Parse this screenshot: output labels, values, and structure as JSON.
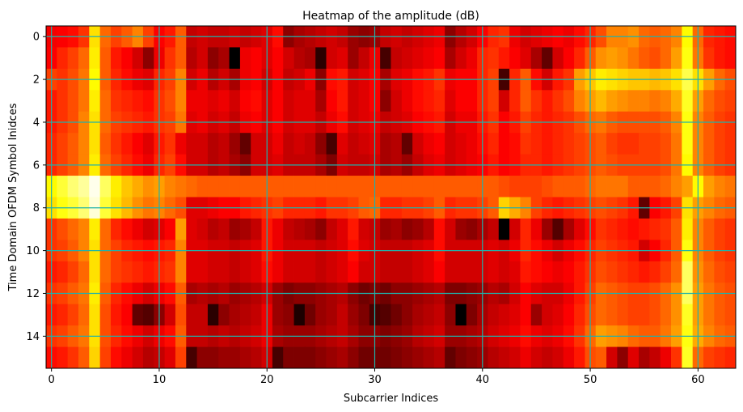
{
  "chart_data": {
    "type": "heatmap",
    "title": "Heatmap of the amplitude (dB)",
    "xlabel": "Subcarrier Indices",
    "ylabel": "Time Domain OFDM Symbol Inidces",
    "colormap": "hot",
    "grid": true,
    "grid_color": "#20b2aa",
    "xlim": [
      -0.5,
      63.5
    ],
    "ylim": [
      15.5,
      -0.5
    ],
    "xticks": [
      0,
      10,
      20,
      30,
      40,
      50,
      60
    ],
    "yticks": [
      0,
      2,
      4,
      6,
      8,
      10,
      12,
      14
    ],
    "n_cols": 64,
    "n_rows": 16,
    "value_scale": "relative amplitude level 0 (dark) to 1 (bright)",
    "matrix": [
      [
        0.35,
        0.36,
        0.38,
        0.44,
        0.7,
        0.52,
        0.46,
        0.5,
        0.56,
        0.46,
        0.36,
        0.4,
        0.5,
        0.28,
        0.3,
        0.28,
        0.28,
        0.3,
        0.28,
        0.3,
        0.32,
        0.38,
        0.2,
        0.24,
        0.26,
        0.28,
        0.3,
        0.28,
        0.22,
        0.2,
        0.22,
        0.28,
        0.3,
        0.28,
        0.3,
        0.32,
        0.34,
        0.2,
        0.26,
        0.3,
        0.36,
        0.42,
        0.44,
        0.34,
        0.3,
        0.32,
        0.34,
        0.36,
        0.34,
        0.38,
        0.42,
        0.48,
        0.56,
        0.56,
        0.58,
        0.52,
        0.5,
        0.52,
        0.56,
        0.74,
        0.52,
        0.42,
        0.4,
        0.38
      ],
      [
        0.36,
        0.42,
        0.46,
        0.52,
        0.72,
        0.5,
        0.4,
        0.36,
        0.3,
        0.2,
        0.34,
        0.44,
        0.5,
        0.26,
        0.3,
        0.2,
        0.24,
        0.0,
        0.34,
        0.36,
        0.32,
        0.36,
        0.3,
        0.26,
        0.24,
        0.06,
        0.3,
        0.32,
        0.22,
        0.28,
        0.34,
        0.1,
        0.28,
        0.3,
        0.32,
        0.34,
        0.36,
        0.24,
        0.3,
        0.34,
        0.42,
        0.44,
        0.4,
        0.36,
        0.32,
        0.24,
        0.14,
        0.3,
        0.36,
        0.42,
        0.5,
        0.58,
        0.6,
        0.58,
        0.54,
        0.5,
        0.48,
        0.52,
        0.6,
        0.76,
        0.54,
        0.44,
        0.4,
        0.38
      ],
      [
        0.46,
        0.44,
        0.48,
        0.54,
        0.74,
        0.5,
        0.42,
        0.38,
        0.34,
        0.32,
        0.42,
        0.46,
        0.56,
        0.3,
        0.34,
        0.26,
        0.3,
        0.24,
        0.34,
        0.36,
        0.3,
        0.36,
        0.28,
        0.3,
        0.34,
        0.2,
        0.38,
        0.4,
        0.3,
        0.32,
        0.36,
        0.24,
        0.32,
        0.34,
        0.38,
        0.4,
        0.44,
        0.34,
        0.36,
        0.36,
        0.42,
        0.46,
        0.1,
        0.42,
        0.5,
        0.38,
        0.3,
        0.4,
        0.44,
        0.6,
        0.66,
        0.72,
        0.7,
        0.68,
        0.66,
        0.66,
        0.64,
        0.66,
        0.7,
        0.82,
        0.7,
        0.6,
        0.52,
        0.48
      ],
      [
        0.4,
        0.44,
        0.48,
        0.54,
        0.72,
        0.52,
        0.44,
        0.42,
        0.4,
        0.38,
        0.44,
        0.48,
        0.56,
        0.34,
        0.34,
        0.32,
        0.34,
        0.3,
        0.36,
        0.38,
        0.32,
        0.36,
        0.3,
        0.32,
        0.32,
        0.24,
        0.36,
        0.4,
        0.3,
        0.32,
        0.36,
        0.2,
        0.3,
        0.34,
        0.38,
        0.4,
        0.42,
        0.32,
        0.36,
        0.36,
        0.42,
        0.46,
        0.3,
        0.42,
        0.5,
        0.44,
        0.4,
        0.44,
        0.48,
        0.56,
        0.6,
        0.64,
        0.6,
        0.58,
        0.56,
        0.56,
        0.54,
        0.56,
        0.62,
        0.78,
        0.6,
        0.52,
        0.48,
        0.46
      ],
      [
        0.4,
        0.44,
        0.48,
        0.56,
        0.7,
        0.52,
        0.46,
        0.44,
        0.42,
        0.4,
        0.44,
        0.46,
        0.54,
        0.32,
        0.34,
        0.3,
        0.32,
        0.28,
        0.34,
        0.36,
        0.32,
        0.36,
        0.3,
        0.32,
        0.32,
        0.28,
        0.34,
        0.38,
        0.3,
        0.32,
        0.34,
        0.28,
        0.3,
        0.32,
        0.36,
        0.38,
        0.4,
        0.3,
        0.34,
        0.34,
        0.4,
        0.44,
        0.36,
        0.4,
        0.46,
        0.42,
        0.4,
        0.42,
        0.44,
        0.48,
        0.52,
        0.54,
        0.5,
        0.48,
        0.48,
        0.48,
        0.48,
        0.5,
        0.56,
        0.76,
        0.56,
        0.5,
        0.46,
        0.44
      ],
      [
        0.42,
        0.46,
        0.5,
        0.56,
        0.7,
        0.5,
        0.44,
        0.4,
        0.36,
        0.32,
        0.4,
        0.44,
        0.34,
        0.3,
        0.3,
        0.26,
        0.28,
        0.22,
        0.14,
        0.3,
        0.3,
        0.34,
        0.28,
        0.3,
        0.28,
        0.2,
        0.1,
        0.32,
        0.28,
        0.3,
        0.32,
        0.24,
        0.26,
        0.14,
        0.3,
        0.34,
        0.36,
        0.3,
        0.32,
        0.34,
        0.38,
        0.42,
        0.36,
        0.38,
        0.44,
        0.42,
        0.4,
        0.42,
        0.44,
        0.46,
        0.48,
        0.5,
        0.46,
        0.44,
        0.44,
        0.46,
        0.46,
        0.48,
        0.54,
        0.76,
        0.56,
        0.5,
        0.46,
        0.44
      ],
      [
        0.42,
        0.46,
        0.5,
        0.56,
        0.72,
        0.52,
        0.46,
        0.42,
        0.38,
        0.34,
        0.42,
        0.46,
        0.38,
        0.3,
        0.3,
        0.26,
        0.28,
        0.24,
        0.2,
        0.3,
        0.3,
        0.32,
        0.28,
        0.28,
        0.28,
        0.24,
        0.18,
        0.3,
        0.28,
        0.28,
        0.3,
        0.24,
        0.26,
        0.22,
        0.28,
        0.32,
        0.34,
        0.3,
        0.32,
        0.34,
        0.36,
        0.4,
        0.36,
        0.38,
        0.42,
        0.42,
        0.4,
        0.42,
        0.44,
        0.46,
        0.48,
        0.5,
        0.48,
        0.46,
        0.46,
        0.46,
        0.46,
        0.48,
        0.54,
        0.74,
        0.56,
        0.5,
        0.46,
        0.44
      ],
      [
        0.74,
        0.8,
        0.86,
        0.9,
        0.98,
        0.84,
        0.72,
        0.66,
        0.62,
        0.58,
        0.6,
        0.56,
        0.54,
        0.52,
        0.5,
        0.5,
        0.5,
        0.5,
        0.5,
        0.5,
        0.5,
        0.5,
        0.5,
        0.5,
        0.5,
        0.5,
        0.5,
        0.5,
        0.5,
        0.5,
        0.5,
        0.5,
        0.5,
        0.5,
        0.5,
        0.5,
        0.5,
        0.5,
        0.5,
        0.5,
        0.5,
        0.5,
        0.48,
        0.46,
        0.46,
        0.46,
        0.48,
        0.5,
        0.5,
        0.5,
        0.52,
        0.54,
        0.54,
        0.54,
        0.5,
        0.5,
        0.5,
        0.52,
        0.56,
        0.6,
        0.74,
        0.6,
        0.56,
        0.54
      ],
      [
        0.7,
        0.76,
        0.8,
        0.86,
        0.96,
        0.8,
        0.7,
        0.64,
        0.58,
        0.54,
        0.56,
        0.52,
        0.48,
        0.32,
        0.32,
        0.34,
        0.36,
        0.36,
        0.4,
        0.42,
        0.44,
        0.46,
        0.42,
        0.42,
        0.42,
        0.4,
        0.44,
        0.44,
        0.46,
        0.5,
        0.52,
        0.42,
        0.42,
        0.44,
        0.44,
        0.46,
        0.5,
        0.42,
        0.44,
        0.44,
        0.46,
        0.5,
        0.68,
        0.62,
        0.56,
        0.46,
        0.42,
        0.4,
        0.42,
        0.44,
        0.46,
        0.48,
        0.46,
        0.44,
        0.4,
        0.14,
        0.36,
        0.4,
        0.46,
        0.7,
        0.6,
        0.56,
        0.52,
        0.5
      ],
      [
        0.44,
        0.48,
        0.52,
        0.56,
        0.72,
        0.52,
        0.42,
        0.38,
        0.34,
        0.3,
        0.32,
        0.36,
        0.6,
        0.32,
        0.3,
        0.26,
        0.28,
        0.22,
        0.24,
        0.28,
        0.4,
        0.34,
        0.28,
        0.26,
        0.24,
        0.2,
        0.28,
        0.32,
        0.4,
        0.3,
        0.28,
        0.22,
        0.24,
        0.2,
        0.22,
        0.26,
        0.38,
        0.3,
        0.22,
        0.2,
        0.24,
        0.28,
        0.0,
        0.3,
        0.42,
        0.34,
        0.22,
        0.12,
        0.24,
        0.32,
        0.38,
        0.44,
        0.42,
        0.4,
        0.38,
        0.4,
        0.42,
        0.44,
        0.5,
        0.72,
        0.56,
        0.5,
        0.46,
        0.44
      ],
      [
        0.44,
        0.46,
        0.5,
        0.56,
        0.7,
        0.52,
        0.46,
        0.42,
        0.4,
        0.38,
        0.4,
        0.42,
        0.56,
        0.32,
        0.32,
        0.3,
        0.3,
        0.28,
        0.3,
        0.32,
        0.4,
        0.34,
        0.3,
        0.3,
        0.3,
        0.28,
        0.3,
        0.32,
        0.38,
        0.32,
        0.3,
        0.28,
        0.28,
        0.28,
        0.3,
        0.32,
        0.38,
        0.3,
        0.3,
        0.3,
        0.3,
        0.32,
        0.3,
        0.34,
        0.42,
        0.38,
        0.34,
        0.3,
        0.34,
        0.38,
        0.42,
        0.46,
        0.44,
        0.42,
        0.4,
        0.3,
        0.36,
        0.42,
        0.5,
        0.76,
        0.56,
        0.5,
        0.46,
        0.44
      ],
      [
        0.4,
        0.42,
        0.46,
        0.52,
        0.7,
        0.52,
        0.46,
        0.44,
        0.42,
        0.4,
        0.42,
        0.44,
        0.56,
        0.32,
        0.32,
        0.3,
        0.3,
        0.28,
        0.3,
        0.32,
        0.38,
        0.34,
        0.3,
        0.3,
        0.3,
        0.28,
        0.3,
        0.32,
        0.36,
        0.3,
        0.3,
        0.28,
        0.28,
        0.28,
        0.3,
        0.32,
        0.36,
        0.3,
        0.3,
        0.3,
        0.3,
        0.32,
        0.3,
        0.32,
        0.4,
        0.38,
        0.36,
        0.34,
        0.36,
        0.4,
        0.44,
        0.48,
        0.46,
        0.44,
        0.42,
        0.4,
        0.42,
        0.46,
        0.52,
        0.84,
        0.58,
        0.52,
        0.48,
        0.46
      ],
      [
        0.44,
        0.46,
        0.5,
        0.54,
        0.72,
        0.5,
        0.42,
        0.38,
        0.34,
        0.3,
        0.34,
        0.38,
        0.5,
        0.24,
        0.26,
        0.24,
        0.26,
        0.22,
        0.24,
        0.26,
        0.3,
        0.22,
        0.18,
        0.2,
        0.2,
        0.22,
        0.24,
        0.26,
        0.2,
        0.16,
        0.18,
        0.16,
        0.2,
        0.2,
        0.22,
        0.24,
        0.26,
        0.18,
        0.18,
        0.2,
        0.22,
        0.26,
        0.24,
        0.3,
        0.36,
        0.32,
        0.3,
        0.3,
        0.34,
        0.4,
        0.46,
        0.52,
        0.5,
        0.48,
        0.46,
        0.46,
        0.48,
        0.52,
        0.58,
        0.84,
        0.6,
        0.54,
        0.5,
        0.48
      ],
      [
        0.4,
        0.42,
        0.46,
        0.52,
        0.7,
        0.48,
        0.4,
        0.36,
        0.14,
        0.12,
        0.2,
        0.3,
        0.48,
        0.28,
        0.28,
        0.06,
        0.2,
        0.24,
        0.26,
        0.28,
        0.34,
        0.22,
        0.2,
        0.04,
        0.16,
        0.22,
        0.24,
        0.28,
        0.22,
        0.18,
        0.1,
        0.12,
        0.16,
        0.2,
        0.24,
        0.26,
        0.28,
        0.2,
        0.0,
        0.18,
        0.24,
        0.28,
        0.3,
        0.32,
        0.36,
        0.22,
        0.3,
        0.32,
        0.36,
        0.42,
        0.48,
        0.52,
        0.5,
        0.48,
        0.46,
        0.46,
        0.48,
        0.52,
        0.58,
        0.78,
        0.6,
        0.54,
        0.5,
        0.48
      ],
      [
        0.44,
        0.46,
        0.5,
        0.54,
        0.7,
        0.48,
        0.42,
        0.38,
        0.34,
        0.3,
        0.34,
        0.38,
        0.5,
        0.28,
        0.28,
        0.26,
        0.28,
        0.26,
        0.28,
        0.3,
        0.34,
        0.24,
        0.22,
        0.22,
        0.22,
        0.24,
        0.26,
        0.28,
        0.24,
        0.2,
        0.2,
        0.18,
        0.2,
        0.22,
        0.26,
        0.28,
        0.3,
        0.22,
        0.22,
        0.24,
        0.26,
        0.3,
        0.32,
        0.34,
        0.38,
        0.34,
        0.32,
        0.34,
        0.38,
        0.44,
        0.52,
        0.6,
        0.58,
        0.56,
        0.52,
        0.5,
        0.5,
        0.54,
        0.6,
        0.76,
        0.62,
        0.56,
        0.52,
        0.5
      ],
      [
        0.38,
        0.4,
        0.44,
        0.5,
        0.68,
        0.46,
        0.38,
        0.34,
        0.3,
        0.26,
        0.28,
        0.32,
        0.46,
        0.1,
        0.2,
        0.2,
        0.22,
        0.22,
        0.24,
        0.26,
        0.3,
        0.1,
        0.18,
        0.18,
        0.18,
        0.2,
        0.22,
        0.24,
        0.2,
        0.16,
        0.16,
        0.16,
        0.18,
        0.2,
        0.22,
        0.24,
        0.26,
        0.14,
        0.18,
        0.2,
        0.22,
        0.26,
        0.28,
        0.3,
        0.34,
        0.3,
        0.28,
        0.3,
        0.34,
        0.4,
        0.48,
        0.5,
        0.3,
        0.2,
        0.32,
        0.24,
        0.28,
        0.34,
        0.44,
        0.78,
        0.52,
        0.46,
        0.44,
        0.42
      ]
    ]
  }
}
